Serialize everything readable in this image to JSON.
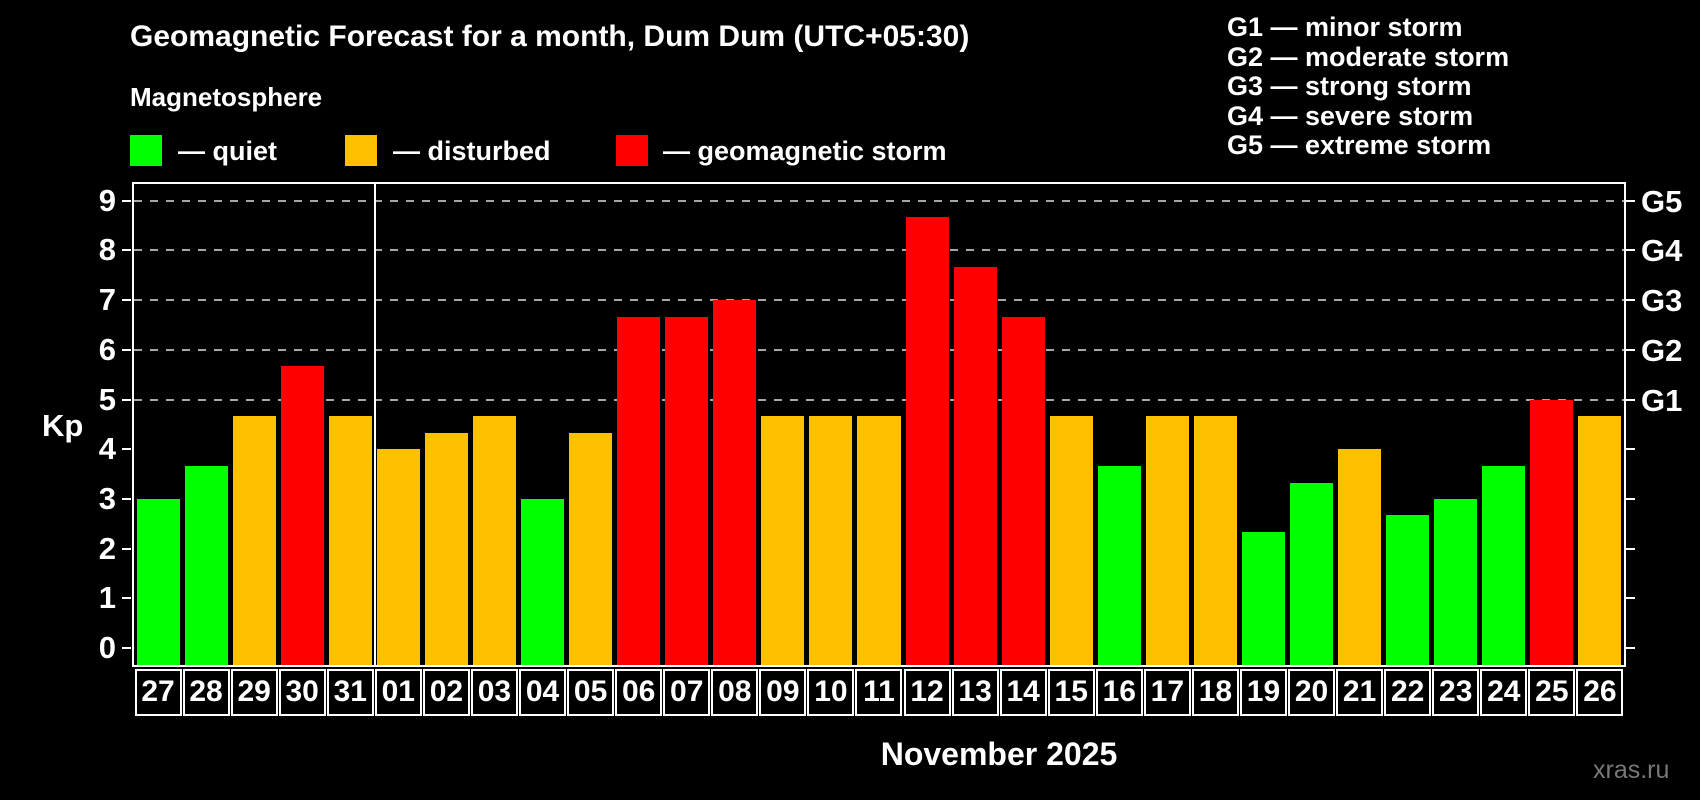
{
  "title": "Geomagnetic Forecast for a month, Dum Dum (UTC+05:30)",
  "subtitle": "Magnetosphere",
  "legend": {
    "quiet_label": "— quiet",
    "disturbed_label": "— disturbed",
    "storm_label": "— geomagnetic storm"
  },
  "g_legend_lines": [
    "G1 — minor storm",
    "G2 — moderate storm",
    "G3 — strong storm",
    "G4 — severe storm",
    "G5 — extreme storm"
  ],
  "axis": {
    "kp_label": "Kp",
    "left_ticks": [
      "0",
      "1",
      "2",
      "3",
      "4",
      "5",
      "6",
      "7",
      "8",
      "9"
    ],
    "right_tick_labels": [
      {
        "kp": 5,
        "label": "G1"
      },
      {
        "kp": 6,
        "label": "G2"
      },
      {
        "kp": 7,
        "label": "G3"
      },
      {
        "kp": 8,
        "label": "G4"
      },
      {
        "kp": 9,
        "label": "G5"
      }
    ]
  },
  "xlabel": "November 2025",
  "watermark": "xras.ru",
  "colors": {
    "quiet": "#00ff00",
    "disturbed": "#ffc000",
    "storm": "#ff0000",
    "grid": "#a6a6a6",
    "frame": "#ffffff",
    "background": "#000000",
    "watermark": "#787878"
  },
  "chart_data": {
    "type": "bar",
    "title": "Geomagnetic Forecast for a month, Dum Dum (UTC+05:30)",
    "xlabel": "November 2025",
    "ylabel": "Kp",
    "ylim": [
      0,
      9
    ],
    "grid": "dashed horizontal at Kp 5-9 only",
    "gridlines_at": [
      5,
      6,
      7,
      8,
      9
    ],
    "right_axis_scale": {
      "G1": 5,
      "G2": 6,
      "G3": 7,
      "G4": 8,
      "G5": 9
    },
    "month_separator_after_index": 4,
    "bars": [
      {
        "date": "27",
        "kp": 3.0,
        "status": "quiet"
      },
      {
        "date": "28",
        "kp": 3.67,
        "status": "quiet"
      },
      {
        "date": "29",
        "kp": 4.67,
        "status": "disturbed"
      },
      {
        "date": "30",
        "kp": 5.67,
        "status": "storm"
      },
      {
        "date": "31",
        "kp": 4.67,
        "status": "disturbed"
      },
      {
        "date": "01",
        "kp": 4.0,
        "status": "disturbed"
      },
      {
        "date": "02",
        "kp": 4.33,
        "status": "disturbed"
      },
      {
        "date": "03",
        "kp": 4.67,
        "status": "disturbed"
      },
      {
        "date": "04",
        "kp": 3.0,
        "status": "quiet"
      },
      {
        "date": "05",
        "kp": 4.33,
        "status": "disturbed"
      },
      {
        "date": "06",
        "kp": 6.67,
        "status": "storm"
      },
      {
        "date": "07",
        "kp": 6.67,
        "status": "storm"
      },
      {
        "date": "08",
        "kp": 7.0,
        "status": "storm"
      },
      {
        "date": "09",
        "kp": 4.67,
        "status": "disturbed"
      },
      {
        "date": "10",
        "kp": 4.67,
        "status": "disturbed"
      },
      {
        "date": "11",
        "kp": 4.67,
        "status": "disturbed"
      },
      {
        "date": "12",
        "kp": 8.67,
        "status": "storm"
      },
      {
        "date": "13",
        "kp": 7.67,
        "status": "storm"
      },
      {
        "date": "14",
        "kp": 6.67,
        "status": "storm"
      },
      {
        "date": "15",
        "kp": 4.67,
        "status": "disturbed"
      },
      {
        "date": "16",
        "kp": 3.67,
        "status": "quiet"
      },
      {
        "date": "17",
        "kp": 4.67,
        "status": "disturbed"
      },
      {
        "date": "18",
        "kp": 4.67,
        "status": "disturbed"
      },
      {
        "date": "19",
        "kp": 2.33,
        "status": "quiet"
      },
      {
        "date": "20",
        "kp": 3.33,
        "status": "quiet"
      },
      {
        "date": "21",
        "kp": 4.0,
        "status": "disturbed"
      },
      {
        "date": "22",
        "kp": 2.67,
        "status": "quiet"
      },
      {
        "date": "23",
        "kp": 3.0,
        "status": "quiet"
      },
      {
        "date": "24",
        "kp": 3.67,
        "status": "quiet"
      },
      {
        "date": "25",
        "kp": 5.0,
        "status": "storm"
      },
      {
        "date": "26",
        "kp": 4.67,
        "status": "disturbed"
      }
    ]
  }
}
